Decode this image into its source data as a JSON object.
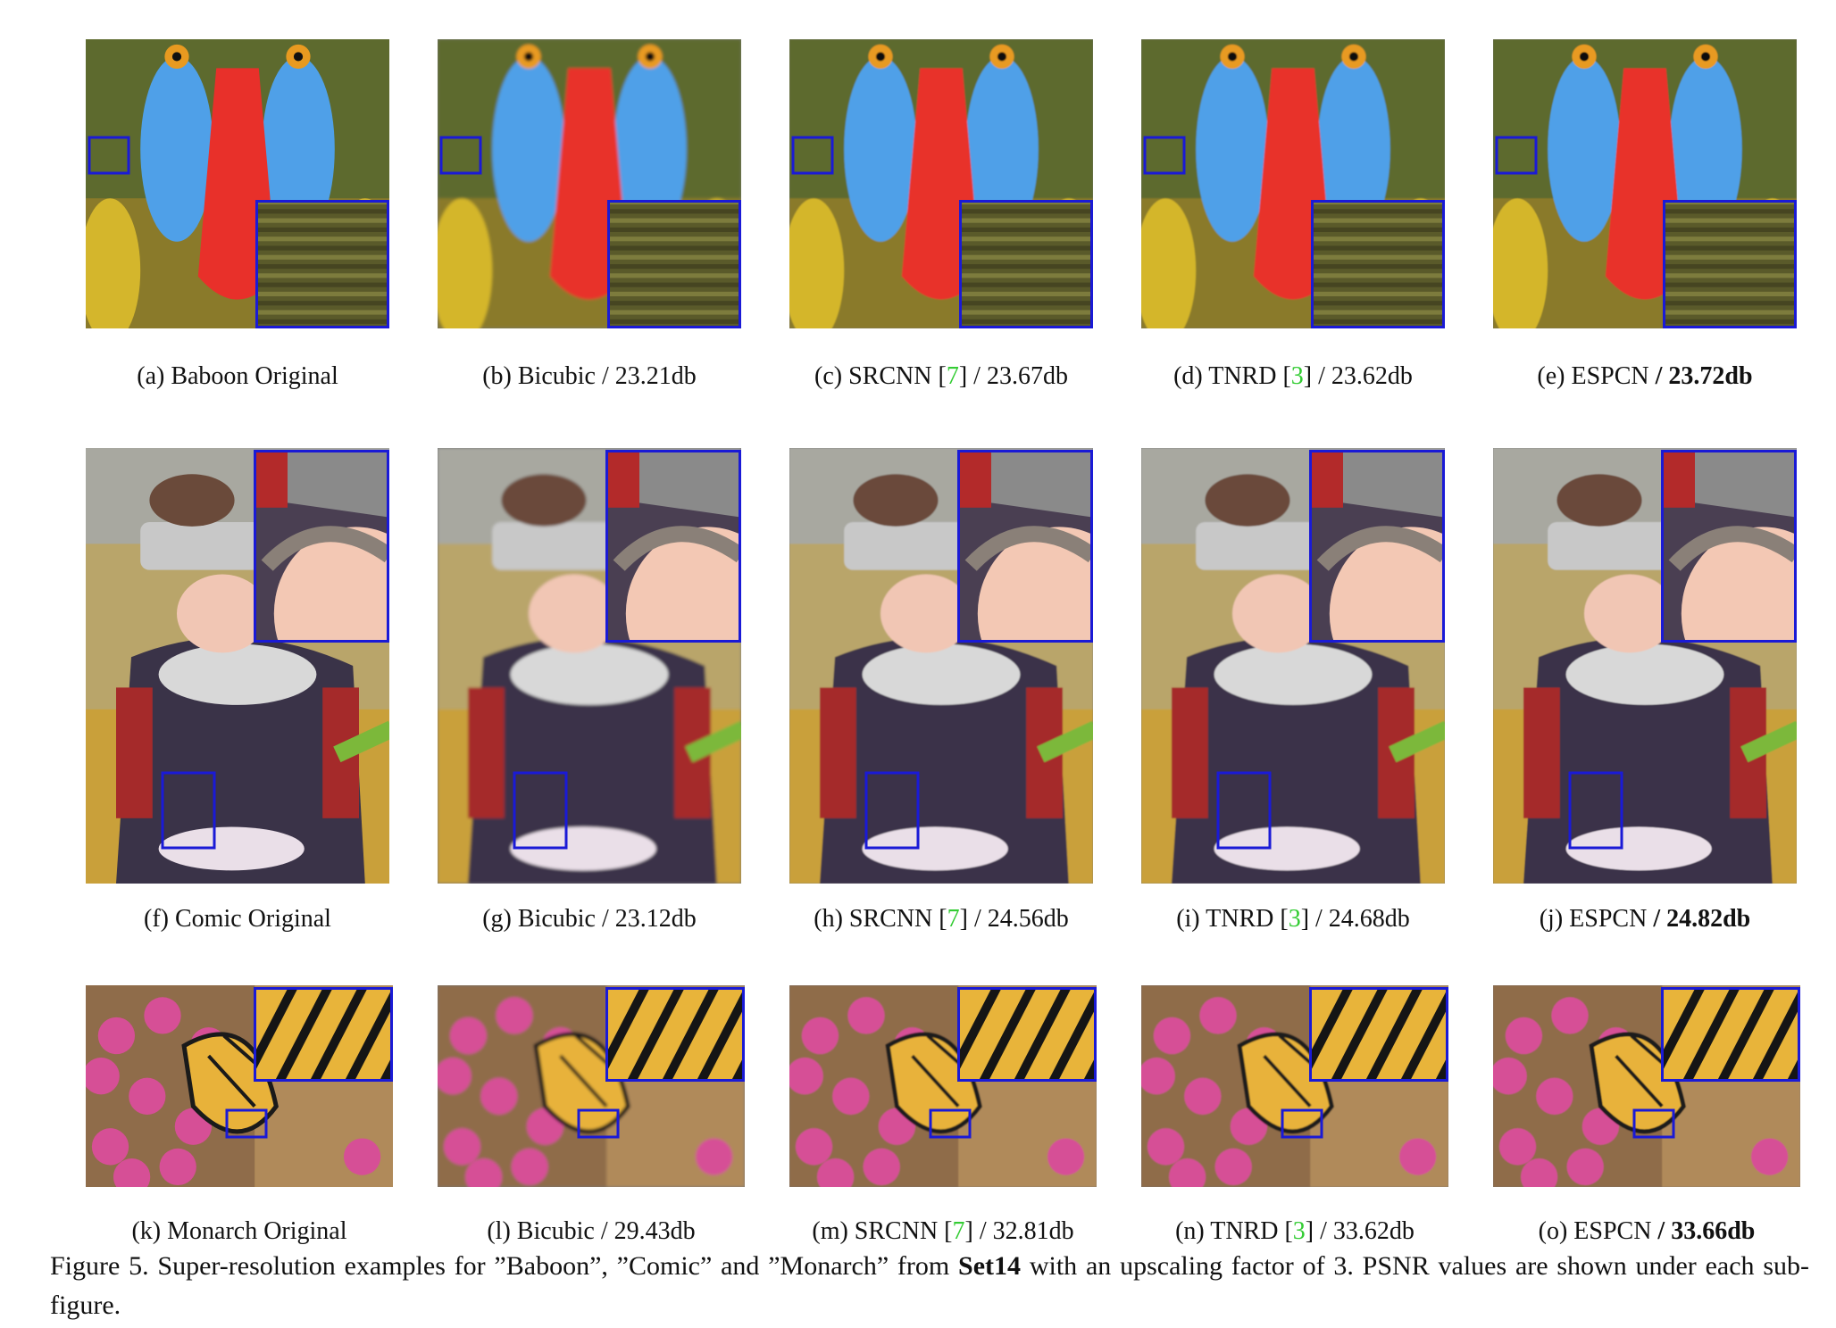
{
  "rows": [
    {
      "scene": "baboon",
      "panels": [
        {
          "label": "(a) Baboon Original",
          "method": "",
          "ref": "",
          "psnr": "",
          "bold": false
        },
        {
          "label": "(b) Bicubic",
          "method": "",
          "ref": "",
          "psnr": "23.21db",
          "bold": false
        },
        {
          "label": "(c) SRCNN",
          "method": "",
          "ref": "7",
          "psnr": "23.67db",
          "bold": false
        },
        {
          "label": "(d) TNRD",
          "method": "",
          "ref": "3",
          "psnr": "23.62db",
          "bold": false
        },
        {
          "label": "(e) ESPCN",
          "method": "",
          "ref": "",
          "psnr": "23.72db",
          "bold": true
        }
      ]
    },
    {
      "scene": "comic",
      "panels": [
        {
          "label": "(f) Comic Original",
          "ref": "",
          "psnr": "",
          "bold": false
        },
        {
          "label": "(g) Bicubic",
          "ref": "",
          "psnr": "23.12db",
          "bold": false
        },
        {
          "label": "(h) SRCNN",
          "ref": "7",
          "psnr": "24.56db",
          "bold": false
        },
        {
          "label": "(i) TNRD",
          "ref": "3",
          "psnr": "24.68db",
          "bold": false
        },
        {
          "label": "(j) ESPCN",
          "ref": "",
          "psnr": "24.82db",
          "bold": true
        }
      ]
    },
    {
      "scene": "monarch",
      "panels": [
        {
          "label": "(k) Monarch Original",
          "ref": "",
          "psnr": "",
          "bold": false
        },
        {
          "label": "(l) Bicubic",
          "ref": "",
          "psnr": "29.43db",
          "bold": false
        },
        {
          "label": "(m) SRCNN",
          "ref": "7",
          "psnr": "32.81db",
          "bold": false
        },
        {
          "label": "(n) TNRD",
          "ref": "3",
          "psnr": "33.62db",
          "bold": false
        },
        {
          "label": "(o) ESPCN",
          "ref": "",
          "psnr": "33.66db",
          "bold": true
        }
      ]
    }
  ],
  "caption": {
    "before": "Figure 5. Super-resolution examples for ”Baboon”, ”Comic” and ”Monarch” from ",
    "bold": "Set14",
    "after": " with an upscaling factor of 3. PSNR values are shown under each sub-figure."
  },
  "colors": {
    "zoom_box": "#1a1ad6",
    "citation": "#33cc33"
  }
}
